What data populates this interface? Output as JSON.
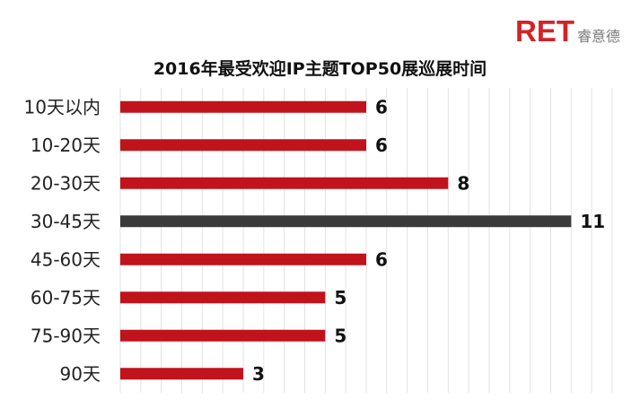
{
  "brand": {
    "mark": "RET",
    "name": "睿意德"
  },
  "colors": {
    "bar": "#c0131c",
    "highlight": "#3a3a3a",
    "grid": "#e2e2e2"
  },
  "chart_data": {
    "type": "bar",
    "orientation": "horizontal",
    "title": "2016年最受欢迎IP主题TOP50展巡展时间",
    "categories": [
      "10天以内",
      "10-20天",
      "20-30天",
      "30-45天",
      "45-60天",
      "60-75天",
      "75-90天",
      "90天"
    ],
    "values": [
      6,
      6,
      8,
      11,
      6,
      5,
      5,
      3
    ],
    "highlight_index": 3,
    "xlim": [
      0,
      12
    ],
    "grid": true,
    "legend": "none"
  }
}
